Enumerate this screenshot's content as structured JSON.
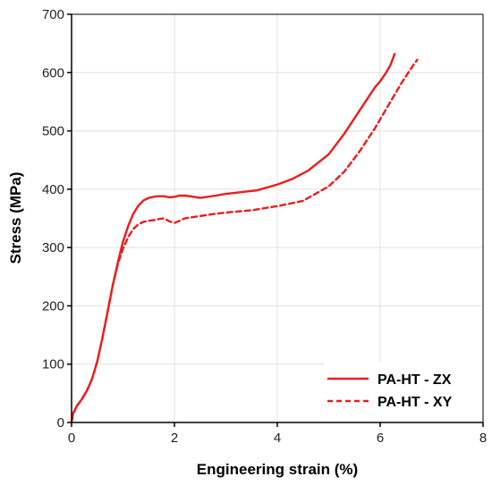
{
  "chart_data": {
    "type": "line",
    "title": "",
    "xlabel": "Engineering strain (%)",
    "ylabel": "Stress (MPa)",
    "xlim": [
      0,
      8
    ],
    "ylim": [
      0,
      700
    ],
    "xticks": [
      0,
      2,
      4,
      6,
      8
    ],
    "yticks": [
      0,
      100,
      200,
      300,
      400,
      500,
      600,
      700
    ],
    "xtick_labels": [
      "0",
      "2",
      "4",
      "6",
      "8"
    ],
    "ytick_labels": [
      "0",
      "100",
      "200",
      "300",
      "400",
      "500",
      "600",
      "700"
    ],
    "grid": true,
    "legend_position": "bottom-right",
    "series": [
      {
        "name": "PA-HT - ZX",
        "color": "#ee1c1c",
        "style": "solid",
        "x": [
          0,
          0.03,
          0.1,
          0.2,
          0.3,
          0.4,
          0.5,
          0.6,
          0.7,
          0.8,
          0.9,
          1.0,
          1.1,
          1.2,
          1.3,
          1.4,
          1.5,
          1.6,
          1.7,
          1.8,
          1.9,
          2.0,
          2.1,
          2.2,
          2.3,
          2.5,
          2.8,
          3.0,
          3.3,
          3.6,
          4.0,
          4.3,
          4.6,
          5.0,
          5.3,
          5.6,
          5.9,
          6.0,
          6.1,
          6.2,
          6.28
        ],
        "y": [
          0,
          15,
          28,
          40,
          55,
          75,
          105,
          145,
          190,
          235,
          275,
          310,
          337,
          358,
          372,
          381,
          385,
          387,
          388,
          388,
          386,
          387,
          389,
          389,
          388,
          385,
          389,
          392,
          395,
          398,
          408,
          418,
          432,
          460,
          495,
          535,
          575,
          585,
          598,
          613,
          632
        ]
      },
      {
        "name": "PA-HT - XY",
        "color": "#ee1c1c",
        "style": "dashed",
        "x": [
          0,
          0.03,
          0.1,
          0.2,
          0.3,
          0.4,
          0.5,
          0.6,
          0.7,
          0.8,
          0.9,
          1.0,
          1.1,
          1.2,
          1.3,
          1.4,
          1.5,
          1.6,
          1.7,
          1.8,
          1.9,
          2.0,
          2.2,
          2.5,
          2.8,
          3.0,
          3.5,
          4.0,
          4.5,
          5.0,
          5.3,
          5.6,
          5.9,
          6.0,
          6.2,
          6.4,
          6.6,
          6.72
        ],
        "y": [
          0,
          15,
          28,
          40,
          55,
          75,
          105,
          145,
          190,
          235,
          272,
          298,
          318,
          332,
          340,
          344,
          346,
          347,
          349,
          350,
          345,
          342,
          350,
          354,
          358,
          360,
          364,
          371,
          380,
          405,
          430,
          465,
          505,
          520,
          550,
          580,
          607,
          622
        ]
      }
    ]
  }
}
